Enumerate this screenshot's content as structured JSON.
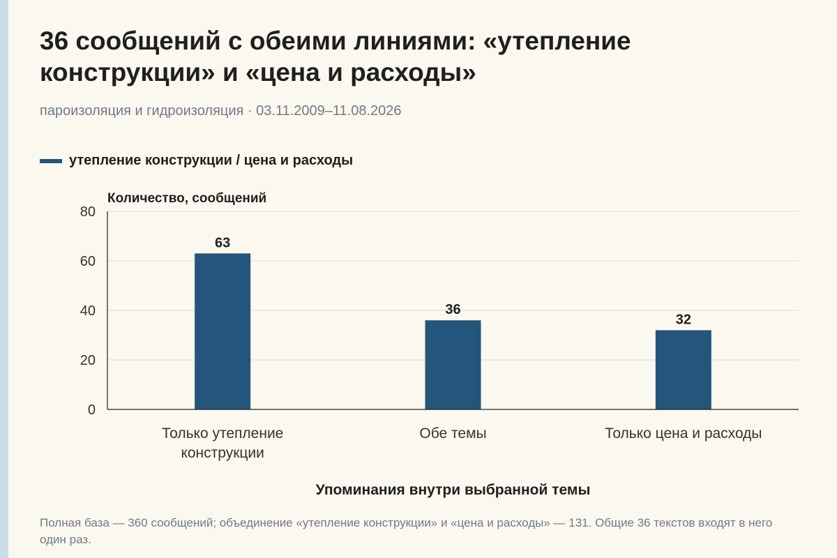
{
  "title": "36 сообщений с обеими линиями: «утепление конструкции» и «цена и расходы»",
  "subtitle": "пароизоляция и гидроизоляция · 03.11.2009–11.08.2026",
  "footnote": "Полная база — 360 сообщений; объединение «утепление конструкции» и «цена и расходы» — 131. Общие 36 текстов входят в него один раз.",
  "colors": {
    "bar": "#24557a",
    "grid": "#dcdcdc",
    "axis": "#222222",
    "background": "#fbf8ef"
  },
  "chart_data": {
    "type": "bar",
    "categories": [
      [
        "Только утепление",
        "конструкции"
      ],
      [
        "Обе темы"
      ],
      [
        "Только цена и расходы"
      ]
    ],
    "series": [
      {
        "name": "утепление конструкции / цена и расходы",
        "values": [
          63,
          36,
          32
        ]
      }
    ],
    "ylabel": "Количество, сообщений",
    "xlabel": "Упоминания внутри выбранной темы",
    "ylim": [
      0,
      80
    ],
    "yticks": [
      0,
      20,
      40,
      60,
      80
    ],
    "grid": true,
    "legend_position": "top-left"
  }
}
